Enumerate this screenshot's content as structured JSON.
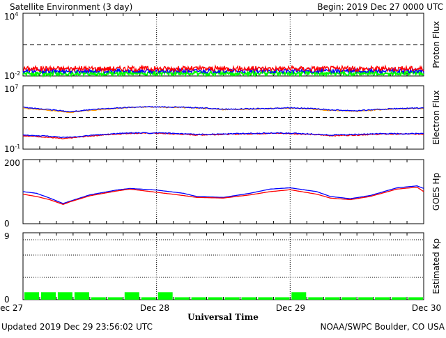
{
  "header": {
    "title": "Satellite Environment (3 day)",
    "begin": "Begin:  2019 Dec 27 0000 UTC"
  },
  "footer": {
    "updated": "Updated 2019 Dec 29 23:56:02 UTC",
    "credit": "NOAA/SWPC Boulder, CO USA"
  },
  "x_axis": {
    "label": "Universal Time",
    "ticks": [
      "Dec 27",
      "Dec 28",
      "Dec 29",
      "Dec 30"
    ]
  },
  "colors": {
    "red": "#ff0000",
    "blue": "#0000ff",
    "green": "#00ff00",
    "orange": "#ff9900"
  },
  "panels": {
    "proton": {
      "ylabel": "Proton Flux",
      "ymax": "10",
      "ymax_exp": "4",
      "ymin": "10",
      "ymin_exp": "-2"
    },
    "electron": {
      "ylabel": "Electron Flux",
      "ymax": "10",
      "ymax_exp": "7",
      "ymin": "10",
      "ymin_exp": "-1"
    },
    "goes": {
      "ylabel": "GOES Hp",
      "ymax": "200",
      "ymin": "0"
    },
    "kp": {
      "ylabel": "Estimated Kp",
      "ymax": "9",
      "ymin": "0"
    }
  },
  "chart_data": [
    {
      "type": "line",
      "name": "proton-flux",
      "ylabel": "Proton Flux",
      "yscale": "log",
      "ylim": [
        0.01,
        10000
      ],
      "x_range_days": [
        0,
        3
      ],
      "threshold": 10,
      "series": [
        {
          "color": "red",
          "level": 0.05,
          "jitter": 0.25
        },
        {
          "color": "blue",
          "level": 0.03,
          "jitter": 0.2
        },
        {
          "color": "green",
          "level": 0.018,
          "jitter": 0.2
        }
      ]
    },
    {
      "type": "line",
      "name": "electron-flux",
      "ylabel": "Electron Flux",
      "yscale": "log",
      "ylim": [
        0.1,
        10000000
      ],
      "threshold": 1000,
      "series": [
        {
          "color": "red",
          "x": [
            0,
            0.1,
            0.2,
            0.3,
            0.4,
            0.6,
            0.8,
            1.0,
            1.3,
            1.6,
            1.9,
            2.1,
            2.3,
            2.5,
            2.7,
            3.0
          ],
          "y": [
            5,
            4,
            3,
            2,
            3,
            6,
            10,
            10,
            6,
            8,
            10,
            8,
            5,
            6,
            8,
            8
          ]
        },
        {
          "color": "blue",
          "x": [
            0,
            0.1,
            0.2,
            0.3,
            0.4,
            0.6,
            0.8,
            1.0,
            1.3,
            1.6,
            1.9,
            2.1,
            2.3,
            2.5,
            2.7,
            3.0
          ],
          "y": [
            6,
            5,
            4,
            3,
            3.5,
            7,
            11,
            11,
            7,
            9,
            11,
            9,
            6,
            7,
            9,
            9
          ]
        },
        {
          "color": "orange",
          "x": [
            0,
            0.15,
            0.35,
            0.6,
            0.9,
            1.2,
            1.5,
            1.8,
            2.0,
            2.3,
            2.5,
            2.8,
            3.0
          ],
          "y": [
            15000,
            9000,
            4000,
            10000,
            20000,
            18000,
            10000,
            12000,
            15000,
            8000,
            6000,
            12000,
            14000
          ]
        },
        {
          "color": "blue",
          "x": [
            0,
            0.15,
            0.35,
            0.6,
            0.9,
            1.2,
            1.5,
            1.8,
            2.0,
            2.3,
            2.5,
            2.8,
            3.0
          ],
          "y": [
            18000,
            11000,
            5000,
            12000,
            22000,
            20000,
            11000,
            13000,
            17000,
            9000,
            7000,
            13000,
            15000
          ]
        }
      ]
    },
    {
      "type": "line",
      "name": "goes-hp",
      "ylabel": "GOES Hp",
      "ylim": [
        0,
        200
      ],
      "series": [
        {
          "color": "blue",
          "x": [
            0,
            0.1,
            0.2,
            0.3,
            0.35,
            0.5,
            0.7,
            0.8,
            1.0,
            1.2,
            1.3,
            1.5,
            1.7,
            1.85,
            2.0,
            2.2,
            2.3,
            2.45,
            2.6,
            2.8,
            2.95,
            3.0
          ],
          "y": [
            100,
            95,
            80,
            63,
            70,
            90,
            105,
            110,
            105,
            95,
            85,
            82,
            95,
            108,
            112,
            100,
            85,
            78,
            88,
            112,
            118,
            110
          ]
        },
        {
          "color": "red",
          "x": [
            0,
            0.1,
            0.2,
            0.3,
            0.35,
            0.5,
            0.7,
            0.8,
            1.0,
            1.2,
            1.3,
            1.5,
            1.7,
            1.85,
            2.0,
            2.2,
            2.3,
            2.45,
            2.6,
            2.8,
            2.95,
            3.0
          ],
          "y": [
            92,
            85,
            75,
            60,
            68,
            87,
            102,
            108,
            98,
            88,
            82,
            80,
            90,
            100,
            106,
            92,
            80,
            75,
            85,
            108,
            114,
            100
          ]
        }
      ]
    },
    {
      "type": "bar",
      "name": "estimated-kp",
      "ylabel": "Estimated Kp",
      "ylim": [
        0,
        9
      ],
      "color": "green",
      "values": [
        1,
        1,
        1,
        1,
        0.33,
        0.33,
        1,
        0.33,
        1,
        0.33,
        0.33,
        0.33,
        0.33,
        0.33,
        0.33,
        0.33,
        1,
        0.33,
        0.33,
        0.33,
        0.33,
        0.33,
        0.33,
        0.33
      ]
    }
  ]
}
